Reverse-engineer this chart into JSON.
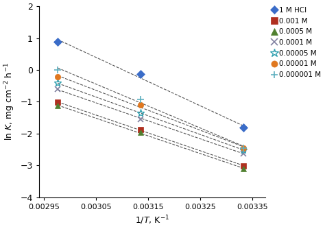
{
  "xlabel": "1/$T$, K$^{-1}$",
  "ylabel": "ln $K$, mg cm$^{-2}$ h$^{-1}$",
  "xlim": [
    0.00294,
    0.003375
  ],
  "ylim": [
    -4,
    2
  ],
  "yticks": [
    -4,
    -3,
    -2,
    -1,
    0,
    1,
    2
  ],
  "xticks": [
    0.00295,
    0.00305,
    0.00315,
    0.00325,
    0.00335
  ],
  "xtick_labels": [
    "0.00295",
    "0.00305",
    "0.00315",
    "0.00325",
    "0.00335"
  ],
  "series": [
    {
      "label": "1 M HCl",
      "color": "#3a6cc8",
      "marker": "D",
      "filled": true,
      "x": [
        0.002976,
        0.003135,
        0.003333
      ],
      "y": [
        0.88,
        -0.12,
        -1.82
      ]
    },
    {
      "label": "0.001 M",
      "color": "#b03020",
      "marker": "s",
      "filled": true,
      "x": [
        0.002976,
        0.003135,
        0.003333
      ],
      "y": [
        -1.02,
        -1.87,
        -3.02
      ]
    },
    {
      "label": "0.0005 M",
      "color": "#508030",
      "marker": "^",
      "filled": true,
      "x": [
        0.002976,
        0.003135,
        0.003333
      ],
      "y": [
        -1.12,
        -1.97,
        -3.1
      ]
    },
    {
      "label": "0.0001 M",
      "color": "#8080a0",
      "marker": "x",
      "filled": false,
      "x": [
        0.002976,
        0.003135,
        0.003333
      ],
      "y": [
        -0.6,
        -1.55,
        -2.62
      ]
    },
    {
      "label": "0.00005 M",
      "color": "#30a0b0",
      "marker": "*",
      "filled": false,
      "x": [
        0.002976,
        0.003135,
        0.003333
      ],
      "y": [
        -0.42,
        -1.35,
        -2.52
      ]
    },
    {
      "label": "0.00001 M",
      "color": "#e07820",
      "marker": "o",
      "filled": true,
      "x": [
        0.002976,
        0.003135,
        0.003333
      ],
      "y": [
        -0.22,
        -1.1,
        -2.45
      ]
    },
    {
      "label": "0.000001 M",
      "color": "#60b0c0",
      "marker": "+",
      "filled": false,
      "x": [
        0.002976,
        0.003135,
        0.003333
      ],
      "y": [
        0.0,
        -0.92,
        -2.45
      ]
    }
  ],
  "background_color": "#ffffff",
  "line_style": "--",
  "line_color": "#555555",
  "line_width": 0.8,
  "marker_size": 6
}
